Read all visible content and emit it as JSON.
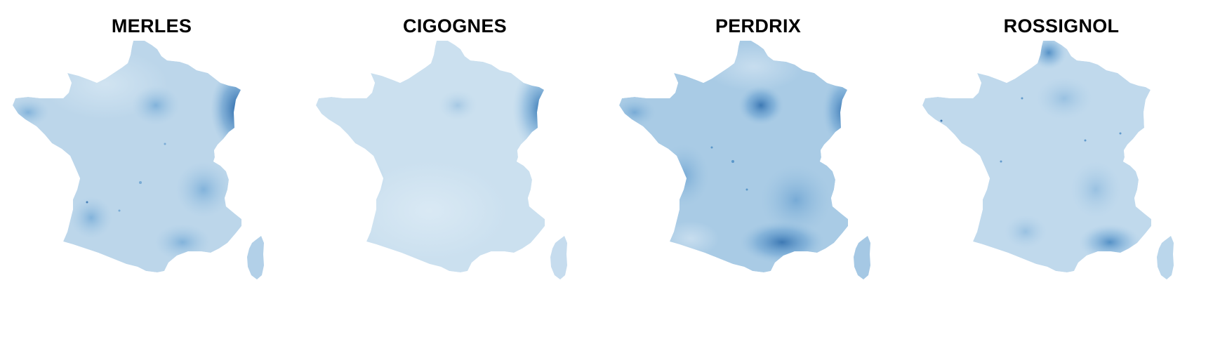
{
  "maps": [
    {
      "title": "MERLES",
      "colors": {
        "base": "#bcd6ea",
        "light": "#cde1f0",
        "dark": "#2f74b5"
      },
      "hotspots": [
        {
          "name": "alsace-hotspot",
          "intensity": "high"
        },
        {
          "name": "paris-hotspot",
          "intensity": "medium"
        },
        {
          "name": "lyon-hotspot",
          "intensity": "low"
        },
        {
          "name": "toulouse-hotspot",
          "intensity": "low"
        }
      ]
    },
    {
      "title": "CIGOGNES",
      "colors": {
        "base": "#cbe0ef",
        "light": "#d6e7f3",
        "dark": "#3a7fbd"
      },
      "hotspots": [
        {
          "name": "alsace-hotspot",
          "intensity": "high"
        },
        {
          "name": "charente-coast-hotspot",
          "intensity": "low"
        }
      ]
    },
    {
      "title": "PERDRIX",
      "colors": {
        "base": "#a9cbe5",
        "light": "#c3dbee",
        "dark": "#3b80be"
      },
      "hotspots": [
        {
          "name": "paris-hotspot",
          "intensity": "medium"
        },
        {
          "name": "alsace-hotspot",
          "intensity": "medium"
        },
        {
          "name": "rhone-valley-hotspot",
          "intensity": "medium"
        },
        {
          "name": "mediterranean-coast-hotspot",
          "intensity": "medium"
        }
      ]
    },
    {
      "title": "ROSSIGNOL",
      "colors": {
        "base": "#c0d9ec",
        "light": "#cfe2f1",
        "dark": "#4a8bc4"
      },
      "hotspots": [
        {
          "name": "nord-hotspot",
          "intensity": "low"
        },
        {
          "name": "provence-hotspot",
          "intensity": "medium"
        },
        {
          "name": "rhone-valley-hotspot",
          "intensity": "low"
        }
      ]
    }
  ]
}
